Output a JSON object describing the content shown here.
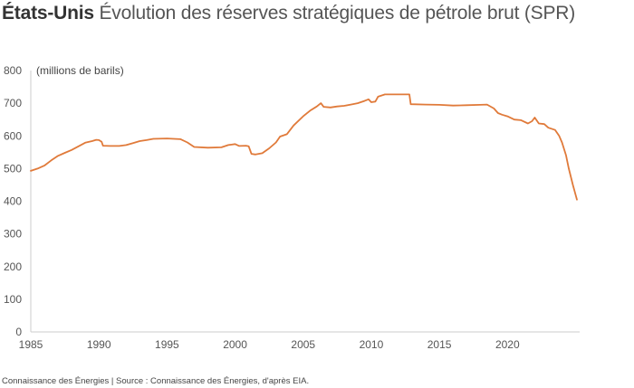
{
  "title": {
    "country": "États-Unis",
    "text": "Évolution des réserves stratégiques de pétrole brut (SPR)"
  },
  "footer": {
    "source": "Connaissance des Énergies | Source : Connaissance des Énergies, d'après EIA."
  },
  "chart_data": {
    "type": "line",
    "ylabel": "(millions de barils)",
    "xlabel": "",
    "xlim": [
      1985,
      2025.3
    ],
    "ylim": [
      0,
      800
    ],
    "x_ticks": [
      1985,
      1990,
      1995,
      2000,
      2005,
      2010,
      2015,
      2020
    ],
    "y_ticks": [
      0,
      100,
      200,
      300,
      400,
      500,
      600,
      700,
      800
    ],
    "grid": false,
    "series_color": "#e07a3a",
    "series": [
      {
        "points": [
          [
            1985.0,
            493
          ],
          [
            1985.5,
            500
          ],
          [
            1986.0,
            509
          ],
          [
            1986.5,
            525
          ],
          [
            1987.0,
            539
          ],
          [
            1987.5,
            548
          ],
          [
            1988.0,
            557
          ],
          [
            1988.5,
            568
          ],
          [
            1989.0,
            579
          ],
          [
            1989.5,
            584
          ],
          [
            1989.8,
            588
          ],
          [
            1990.0,
            587
          ],
          [
            1990.2,
            582
          ],
          [
            1990.3,
            570
          ],
          [
            1990.8,
            569
          ],
          [
            1991.5,
            569
          ],
          [
            1992.0,
            572
          ],
          [
            1992.5,
            578
          ],
          [
            1993.0,
            584
          ],
          [
            1993.5,
            587
          ],
          [
            1994.0,
            591
          ],
          [
            1995.0,
            592
          ],
          [
            1996.0,
            590
          ],
          [
            1996.5,
            580
          ],
          [
            1997.0,
            566
          ],
          [
            1998.0,
            564
          ],
          [
            1999.0,
            565
          ],
          [
            1999.5,
            572
          ],
          [
            2000.0,
            575
          ],
          [
            2000.3,
            569
          ],
          [
            2000.8,
            570
          ],
          [
            2001.0,
            568
          ],
          [
            2001.2,
            545
          ],
          [
            2001.5,
            543
          ],
          [
            2002.0,
            547
          ],
          [
            2002.5,
            562
          ],
          [
            2003.0,
            580
          ],
          [
            2003.3,
            598
          ],
          [
            2003.8,
            605
          ],
          [
            2004.3,
            632
          ],
          [
            2005.0,
            660
          ],
          [
            2005.5,
            677
          ],
          [
            2006.0,
            690
          ],
          [
            2006.3,
            700
          ],
          [
            2006.5,
            689
          ],
          [
            2007.0,
            687
          ],
          [
            2007.5,
            690
          ],
          [
            2008.0,
            692
          ],
          [
            2008.5,
            696
          ],
          [
            2009.0,
            700
          ],
          [
            2009.5,
            707
          ],
          [
            2009.8,
            712
          ],
          [
            2010.0,
            703
          ],
          [
            2010.3,
            705
          ],
          [
            2010.5,
            720
          ],
          [
            2011.0,
            727
          ],
          [
            2012.0,
            727
          ],
          [
            2012.8,
            727
          ],
          [
            2012.9,
            697
          ],
          [
            2014.0,
            696
          ],
          [
            2015.0,
            695
          ],
          [
            2016.0,
            693
          ],
          [
            2017.0,
            694
          ],
          [
            2018.0,
            695
          ],
          [
            2018.5,
            696
          ],
          [
            2019.0,
            684
          ],
          [
            2019.3,
            670
          ],
          [
            2019.6,
            665
          ],
          [
            2020.0,
            660
          ],
          [
            2020.5,
            650
          ],
          [
            2021.0,
            648
          ],
          [
            2021.5,
            638
          ],
          [
            2021.8,
            645
          ],
          [
            2022.0,
            656
          ],
          [
            2022.3,
            638
          ],
          [
            2022.7,
            636
          ],
          [
            2023.0,
            625
          ],
          [
            2023.5,
            618
          ],
          [
            2023.8,
            600
          ],
          [
            2024.0,
            580
          ],
          [
            2024.3,
            540
          ],
          [
            2024.5,
            500
          ],
          [
            2024.8,
            450
          ],
          [
            2025.1,
            405
          ]
        ]
      }
    ]
  }
}
